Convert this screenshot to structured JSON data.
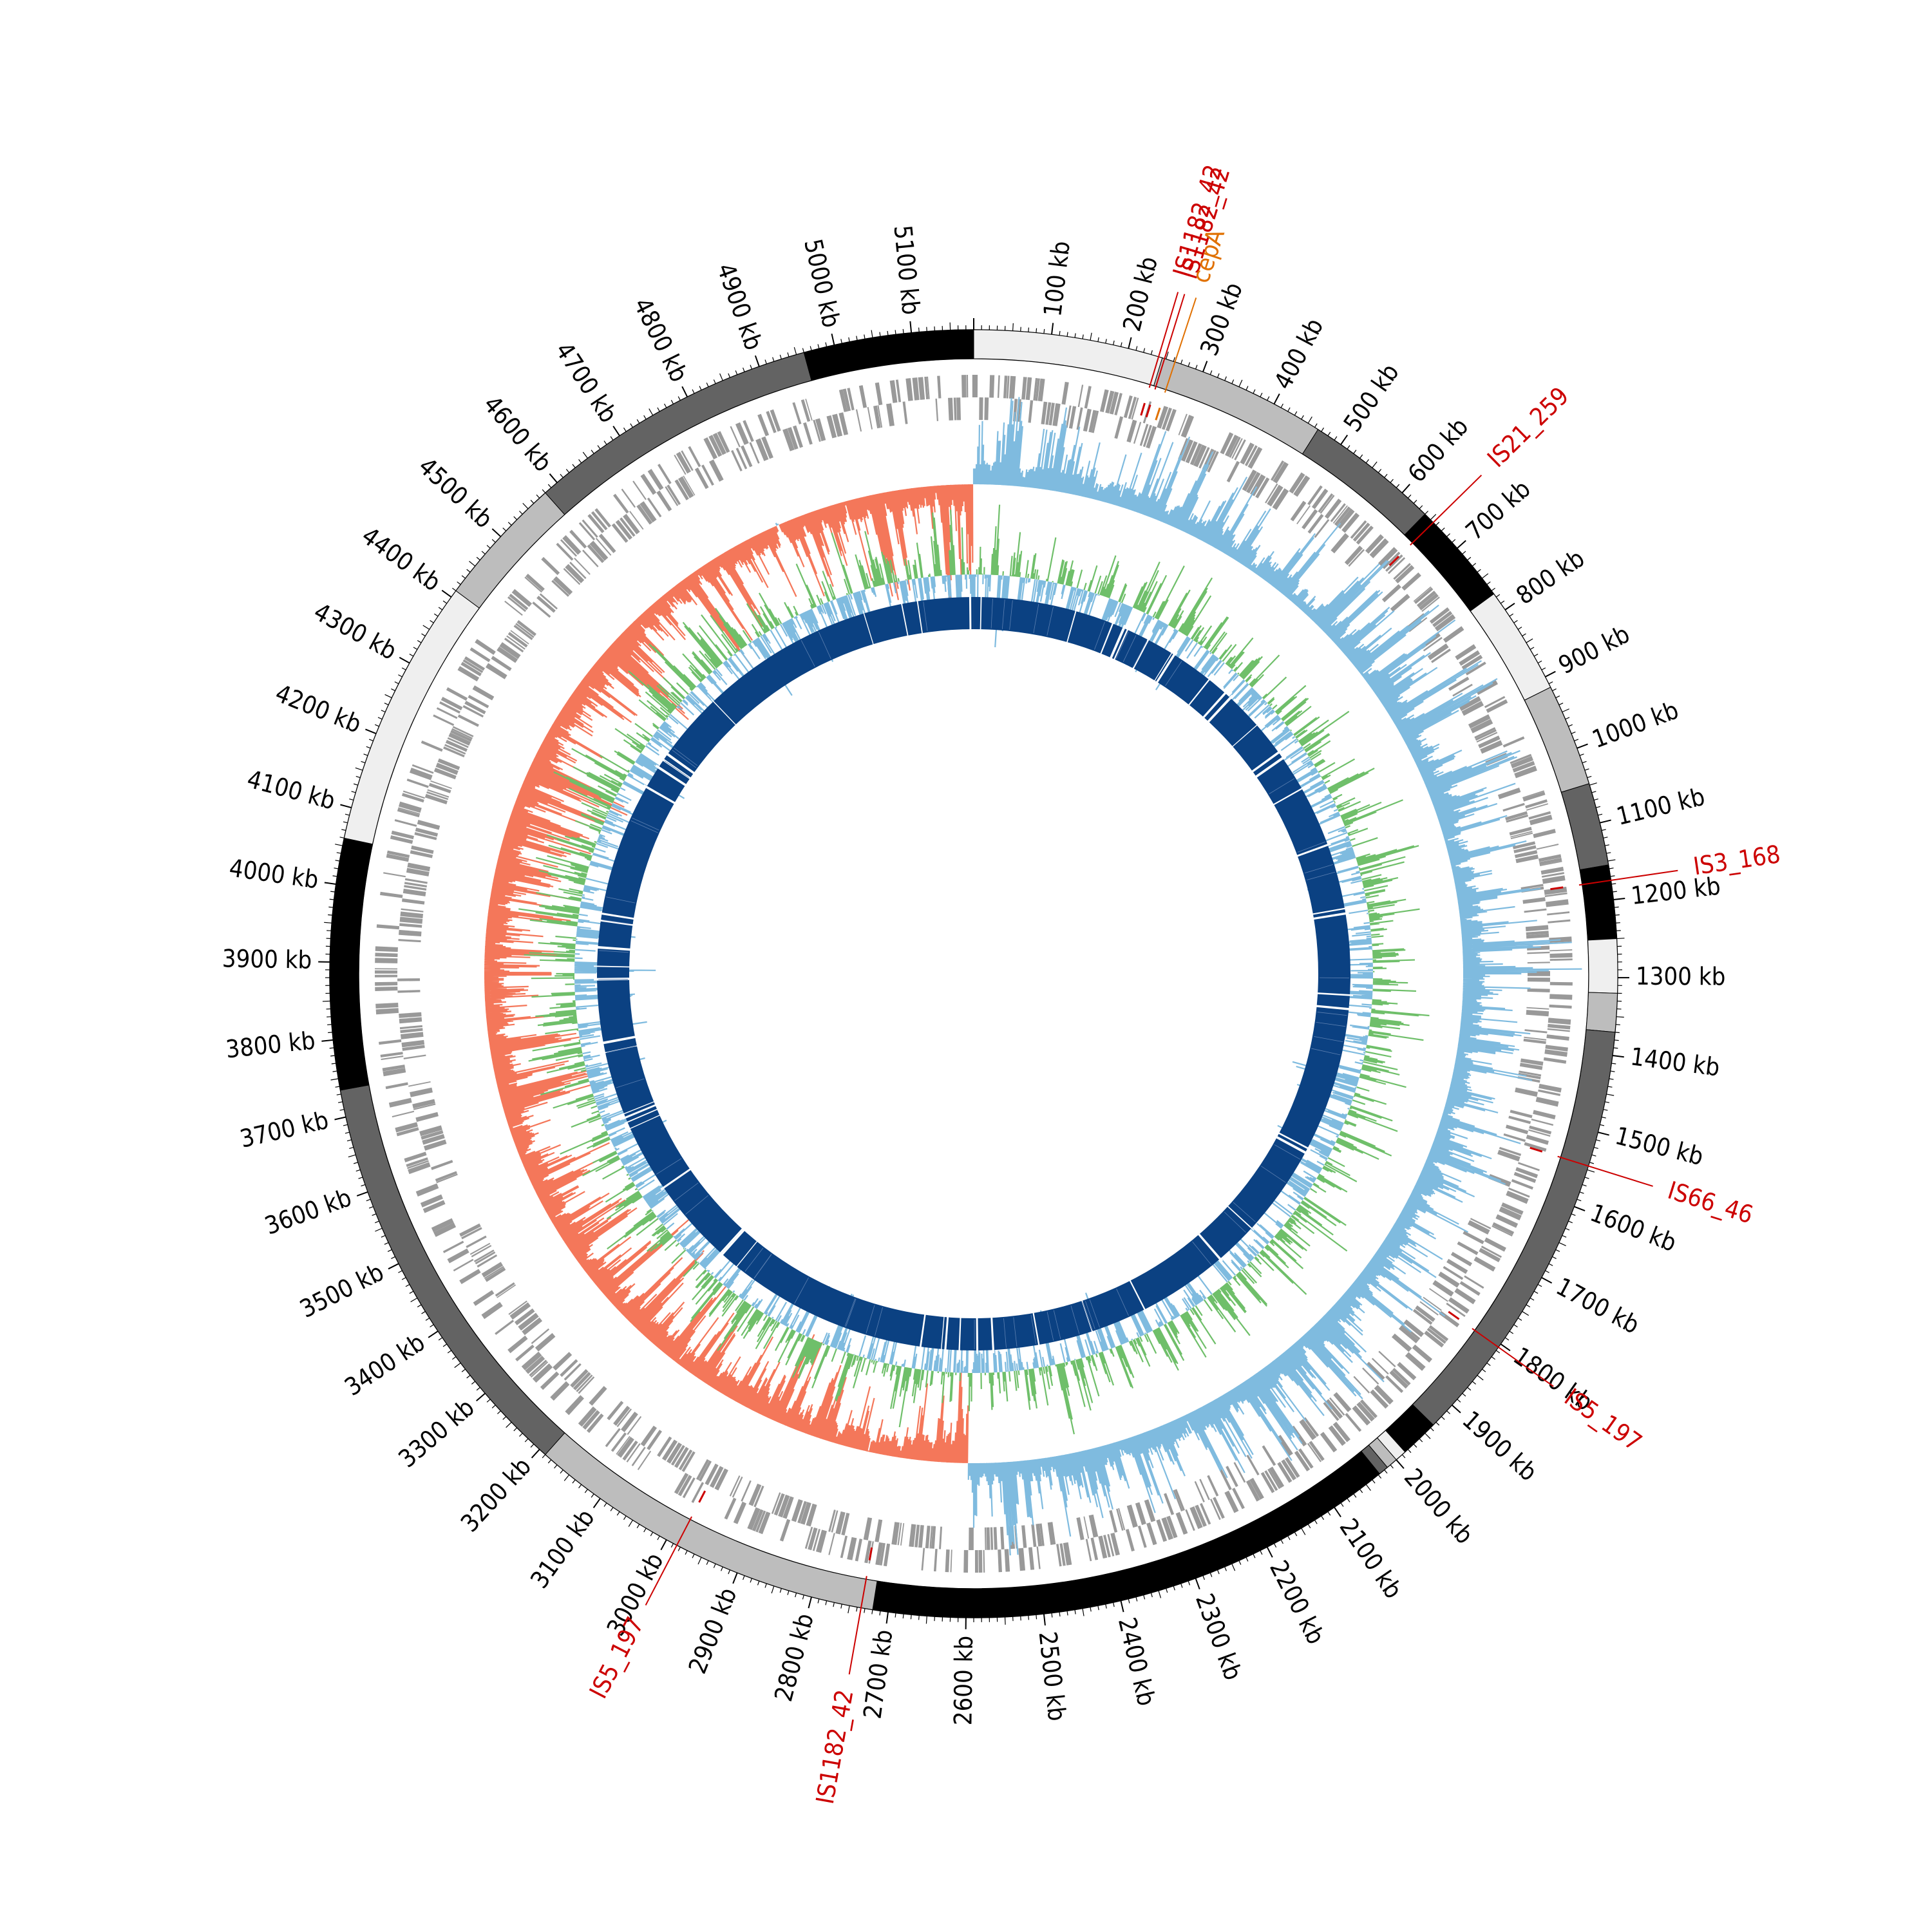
{
  "genome": {
    "length_kb": 5180,
    "tick_labels": [
      "100 kb",
      "200 kb",
      "300 kb",
      "400 kb",
      "500 kb",
      "600 kb",
      "700 kb",
      "800 kb",
      "900 kb",
      "1000 kb",
      "1100 kb",
      "1200 kb",
      "1300 kb",
      "1400 kb",
      "1500 kb",
      "1600 kb",
      "1700 kb",
      "1800 kb",
      "1900 kb",
      "2000 kb",
      "2100 kb",
      "2200 kb",
      "2300 kb",
      "2400 kb",
      "2500 kb",
      "2600 kb",
      "2700 kb",
      "2800 kb",
      "2900 kb",
      "3000 kb",
      "3100 kb",
      "3200 kb",
      "3300 kb",
      "3400 kb",
      "3500 kb",
      "3600 kb",
      "3700 kb",
      "3800 kb",
      "3900 kb",
      "4000 kb",
      "4100 kb",
      "4200 kb",
      "4300 kb",
      "4400 kb",
      "4500 kb",
      "4600 kb",
      "4700 kb",
      "4800 kb",
      "4900 kb",
      "5000 kb",
      "5100 kb"
    ]
  },
  "contig_blocks": [
    {
      "start": 0,
      "end": 245,
      "color": "#efefef"
    },
    {
      "start": 245,
      "end": 465,
      "color": "#bdbdbd"
    },
    {
      "start": 465,
      "end": 640,
      "color": "#636363"
    },
    {
      "start": 640,
      "end": 775,
      "color": "#000000"
    },
    {
      "start": 775,
      "end": 915,
      "color": "#efefef"
    },
    {
      "start": 915,
      "end": 1048,
      "color": "#bdbdbd"
    },
    {
      "start": 1048,
      "end": 1155,
      "color": "#636363"
    },
    {
      "start": 1155,
      "end": 1250,
      "color": "#000000"
    },
    {
      "start": 1250,
      "end": 1320,
      "color": "#efefef"
    },
    {
      "start": 1320,
      "end": 1370,
      "color": "#bdbdbd"
    },
    {
      "start": 1370,
      "end": 1935,
      "color": "#636363"
    },
    {
      "start": 1935,
      "end": 1985,
      "color": "#000000"
    },
    {
      "start": 1985,
      "end": 2000,
      "color": "#efefef"
    },
    {
      "start": 2000,
      "end": 2015,
      "color": "#bdbdbd"
    },
    {
      "start": 2015,
      "end": 2028,
      "color": "#636363"
    },
    {
      "start": 2028,
      "end": 2720,
      "color": "#000000"
    },
    {
      "start": 2720,
      "end": 3190,
      "color": "#bdbdbd"
    },
    {
      "start": 3190,
      "end": 3735,
      "color": "#636363"
    },
    {
      "start": 3735,
      "end": 4060,
      "color": "#000000"
    },
    {
      "start": 4060,
      "end": 4410,
      "color": "#efefef"
    },
    {
      "start": 4410,
      "end": 4580,
      "color": "#bdbdbd"
    },
    {
      "start": 4580,
      "end": 4960,
      "color": "#636363"
    },
    {
      "start": 4960,
      "end": 5180,
      "color": "#000000"
    }
  ],
  "annotations": [
    {
      "label": "IS1182_42",
      "pos": 240,
      "color": "#cc0000"
    },
    {
      "label": "IS1182_42",
      "pos": 248,
      "color": "#cc0000"
    },
    {
      "label": "cepA",
      "pos": 262,
      "color": "#e07000"
    },
    {
      "label": "IS21_259",
      "pos": 655,
      "color": "#cc0000"
    },
    {
      "label": "IS3_168",
      "pos": 1175,
      "color": "#cc0000"
    },
    {
      "label": "IS66_46",
      "pos": 1545,
      "color": "#cc0000"
    },
    {
      "label": "IS5_197",
      "pos": 1805,
      "color": "#cc0000"
    },
    {
      "label": "IS1182_42",
      "pos": 2735,
      "color": "#cc0000"
    },
    {
      "label": "IS5_197",
      "pos": 2985,
      "color": "#cc0000"
    }
  ],
  "gap_positions_kb": [
    15,
    225,
    310,
    335,
    345,
    395,
    455,
    460,
    555,
    600,
    615,
    700,
    775,
    790,
    870,
    1005,
    1150,
    1160,
    1340,
    1370,
    1690,
    1700,
    1905,
    2000,
    2200,
    2325,
    2445,
    2545,
    2580,
    2620,
    2650,
    2660,
    2705,
    3150,
    3190,
    3195,
    3385,
    3535,
    3550,
    3560,
    3570,
    3710,
    3730,
    3870,
    3900,
    3940,
    4000,
    4015,
    4310,
    4360,
    4380,
    4395,
    4550,
    4935,
    5020,
    5055,
    5170
  ],
  "colors": {
    "gc_skew_positive": "#7fbbdf",
    "gc_skew_negative": "#f4775a",
    "gc_content_high": "#6fbf6a",
    "gc_content_low": "#7fbbdf",
    "gene_marks": "#999999",
    "homology_ring": "#0b4182"
  }
}
